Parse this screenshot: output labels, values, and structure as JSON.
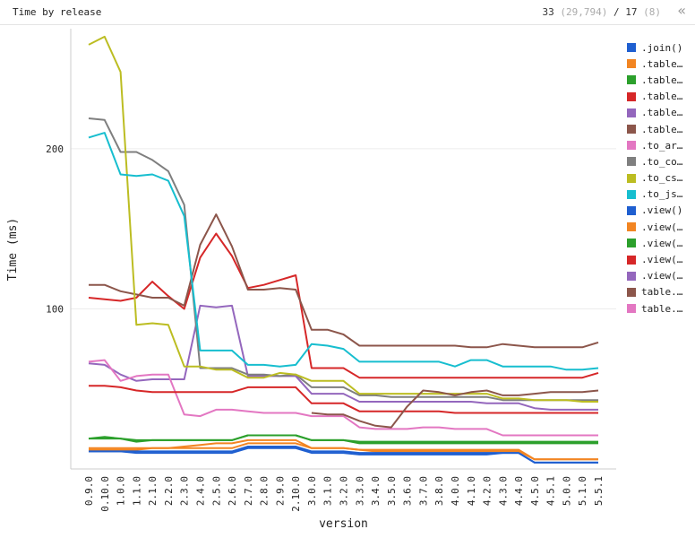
{
  "header": {
    "title": "Time by release",
    "count_main": "33",
    "count_paren": "(29,794)",
    "count_sep": "/",
    "count_total": "17",
    "count_total_paren": "(8)",
    "collapse_icon": "«"
  },
  "chart_data": {
    "type": "line",
    "xlabel": "version",
    "ylabel": "Time (ms)",
    "ylim": [
      0,
      275
    ],
    "yticks": [
      100,
      200
    ],
    "grid": true,
    "legend_position": "right",
    "categories": [
      "0.9.0",
      "0.10.0",
      "1.0.0",
      "1.1.0",
      "2.1.0",
      "2.2.0",
      "2.3.0",
      "2.4.0",
      "2.5.0",
      "2.6.0",
      "2.7.0",
      "2.8.0",
      "2.9.0",
      "2.10.0",
      "3.0.0",
      "3.1.0",
      "3.2.0",
      "3.3.0",
      "3.4.0",
      "3.5.0",
      "3.6.0",
      "3.7.0",
      "3.8.0",
      "4.0.0",
      "4.1.0",
      "4.2.0",
      "4.3.0",
      "4.4.0",
      "4.5.0",
      "4.5.1",
      "5.0.0",
      "5.1.0",
      "5.5.1"
    ],
    "series": [
      {
        "name": ".join()",
        "color": "#1f5fd0",
        "values": [
          11,
          11,
          11,
          10,
          10,
          10,
          10,
          10,
          10,
          10,
          13,
          13,
          13,
          13,
          10,
          10,
          10,
          9,
          9,
          9,
          9,
          9,
          9,
          9,
          9,
          9,
          10,
          10,
          4,
          4,
          4,
          4,
          4
        ]
      },
      {
        "name": ".table…",
        "color": "#f28522",
        "values": [
          12,
          12,
          12,
          12,
          13,
          13,
          14,
          15,
          16,
          16,
          18,
          18,
          18,
          18,
          13,
          13,
          13,
          12,
          11,
          11,
          11,
          11,
          11,
          11,
          11,
          11,
          11,
          11,
          6,
          6,
          6,
          6,
          6
        ]
      },
      {
        "name": ".table…",
        "color": "#2ca02c",
        "values": [
          19,
          19,
          19,
          17,
          18,
          18,
          18,
          18,
          18,
          18,
          21,
          21,
          21,
          21,
          18,
          18,
          18,
          16,
          16,
          16,
          16,
          16,
          16,
          16,
          16,
          16,
          16,
          16,
          16,
          16,
          16,
          16,
          16
        ]
      },
      {
        "name": ".table…",
        "color": "#d62728",
        "values": [
          107,
          106,
          105,
          107,
          117,
          108,
          100,
          132,
          147,
          133,
          113,
          115,
          118,
          121,
          63,
          63,
          63,
          57,
          57,
          57,
          57,
          57,
          57,
          57,
          57,
          57,
          57,
          57,
          57,
          57,
          57,
          57,
          60
        ]
      },
      {
        "name": ".table…",
        "color": "#9467bd",
        "values": [
          66,
          65,
          59,
          55,
          56,
          56,
          56,
          102,
          101,
          102,
          58,
          58,
          58,
          58,
          47,
          47,
          47,
          42,
          42,
          42,
          42,
          42,
          42,
          42,
          42,
          41,
          41,
          41,
          38,
          37,
          37,
          37,
          37
        ]
      },
      {
        "name": ".table…",
        "color": "#8c564b",
        "values": [
          115,
          115,
          111,
          109,
          107,
          107,
          102,
          140,
          159,
          139,
          112,
          112,
          113,
          112,
          87,
          87,
          84,
          77,
          77,
          77,
          77,
          77,
          77,
          77,
          76,
          76,
          78,
          77,
          76,
          76,
          76,
          76,
          79
        ]
      },
      {
        "name": ".to_ar…",
        "color": "#e377c2",
        "values": [
          67,
          68,
          55,
          58,
          59,
          59,
          34,
          33,
          37,
          37,
          36,
          35,
          35,
          35,
          33,
          33,
          33,
          26,
          25,
          25,
          25,
          26,
          26,
          25,
          25,
          25,
          21,
          21,
          21,
          21,
          21,
          21,
          21
        ]
      },
      {
        "name": ".to_co…",
        "color": "#7f7f7f",
        "values": [
          219,
          218,
          198,
          198,
          193,
          186,
          165,
          63,
          63,
          63,
          59,
          59,
          58,
          59,
          51,
          51,
          51,
          46,
          46,
          45,
          45,
          45,
          45,
          45,
          45,
          45,
          43,
          43,
          43,
          43,
          43,
          43,
          43
        ]
      },
      {
        "name": ".to_cs…",
        "color": "#bcbd22",
        "values": [
          265,
          270,
          248,
          90,
          91,
          90,
          64,
          64,
          62,
          62,
          57,
          57,
          60,
          59,
          55,
          55,
          55,
          47,
          47,
          47,
          47,
          47,
          47,
          47,
          47,
          47,
          44,
          44,
          43,
          43,
          43,
          42,
          42
        ]
      },
      {
        "name": ".to_js…",
        "color": "#17becf",
        "values": [
          207,
          210,
          184,
          183,
          184,
          180,
          158,
          74,
          74,
          74,
          65,
          65,
          64,
          65,
          78,
          77,
          75,
          67,
          67,
          67,
          67,
          67,
          67,
          64,
          68,
          68,
          64,
          64,
          64,
          64,
          62,
          62,
          63
        ]
      },
      {
        "name": ".view()",
        "color": "#1f5fd0",
        "values": [
          11,
          11,
          11,
          11,
          11,
          11,
          11,
          11,
          11,
          11,
          14,
          14,
          14,
          14,
          11,
          11,
          11,
          10,
          10,
          10,
          10,
          10,
          10,
          10,
          10,
          10,
          10,
          10,
          4,
          4,
          4,
          4,
          4
        ]
      },
      {
        "name": ".view(…",
        "color": "#f28522",
        "values": [
          13,
          13,
          13,
          13,
          13,
          13,
          13,
          13,
          13,
          13,
          16,
          16,
          16,
          16,
          13,
          13,
          13,
          12,
          12,
          12,
          12,
          12,
          12,
          12,
          12,
          12,
          12,
          12,
          6,
          6,
          6,
          6,
          6
        ]
      },
      {
        "name": ".view(…",
        "color": "#2ca02c",
        "values": [
          19,
          20,
          19,
          18,
          18,
          18,
          18,
          18,
          18,
          18,
          21,
          21,
          21,
          21,
          18,
          18,
          18,
          17,
          17,
          17,
          17,
          17,
          17,
          17,
          17,
          17,
          17,
          17,
          17,
          17,
          17,
          17,
          17
        ]
      },
      {
        "name": ".view(…",
        "color": "#d62728",
        "values": [
          52,
          52,
          51,
          49,
          48,
          48,
          48,
          48,
          48,
          48,
          51,
          51,
          51,
          51,
          41,
          41,
          41,
          36,
          36,
          36,
          36,
          36,
          36,
          35,
          35,
          35,
          35,
          35,
          35,
          35,
          35,
          35,
          35
        ]
      },
      {
        "name": ".view(…",
        "color": "#9467bd",
        "values": [
          null,
          null,
          null,
          null,
          null,
          null,
          null,
          null,
          null,
          null,
          null,
          null,
          null,
          null,
          null,
          null,
          null,
          null,
          null,
          null,
          null,
          null,
          null,
          null,
          null,
          null,
          null,
          null,
          null,
          null,
          null,
          null,
          null
        ]
      },
      {
        "name": "table.…",
        "color": "#8c564b",
        "values": [
          null,
          null,
          null,
          null,
          null,
          null,
          null,
          null,
          null,
          null,
          null,
          null,
          null,
          null,
          35,
          34,
          34,
          30,
          27,
          26,
          39,
          49,
          48,
          46,
          48,
          49,
          46,
          46,
          47,
          48,
          48,
          48,
          49
        ]
      },
      {
        "name": "table.…",
        "color": "#e377c2",
        "values": [
          null,
          null,
          null,
          null,
          null,
          null,
          null,
          null,
          null,
          null,
          null,
          null,
          null,
          null,
          null,
          null,
          null,
          null,
          null,
          null,
          null,
          null,
          null,
          null,
          null,
          null,
          null,
          null,
          null,
          null,
          null,
          null,
          null
        ]
      }
    ]
  }
}
